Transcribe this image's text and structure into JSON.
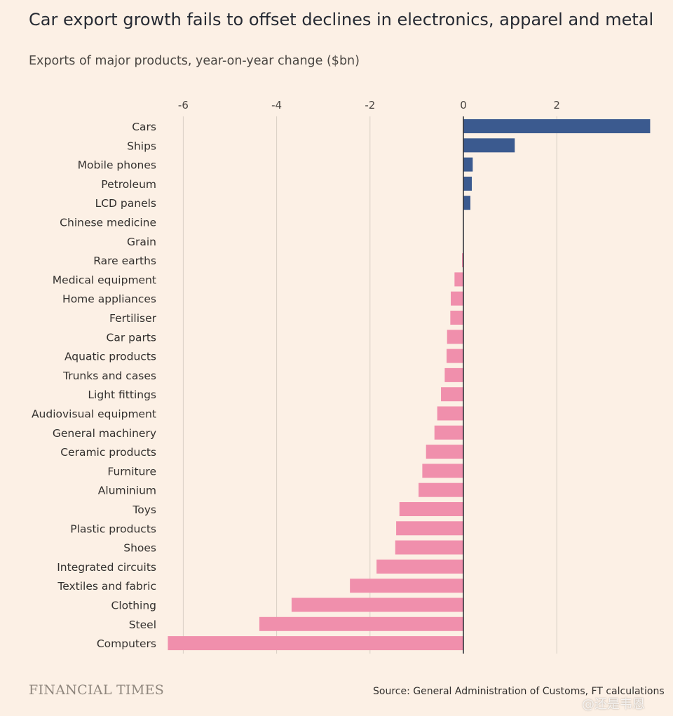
{
  "header": {
    "title": "Car export growth fails to offset declines in electronics, apparel and metal",
    "subtitle": "Exports of major products, year-on-year change ($bn)"
  },
  "footer": {
    "brand": "FINANCIAL TIMES",
    "source": "Source: General Administration of Customs, FT calculations",
    "watermark": "@还是韦恩"
  },
  "colors": {
    "background": "#fcf0e5",
    "positive": "#3b5a8f",
    "negative": "#f08fac",
    "gridline": "#d8cfc4",
    "zero_line": "#262a33"
  },
  "chart_data": {
    "type": "bar",
    "orientation": "horizontal",
    "title": "Car export growth fails to offset declines in electronics, apparel and metal",
    "subtitle": "Exports of major products, year-on-year change ($bn)",
    "xlabel": "",
    "ylabel": "",
    "xlim": [
      -6.3,
      4.0
    ],
    "xticks": [
      -6,
      -4,
      -2,
      0,
      2
    ],
    "grid": true,
    "categories": [
      "Cars",
      "Ships",
      "Mobile phones",
      "Petroleum",
      "LCD panels",
      "Chinese medicine",
      "Grain",
      "Rare earths",
      "Medical equipment",
      "Home appliances",
      "Fertiliser",
      "Car parts",
      "Aquatic products",
      "Trunks and cases",
      "Light fittings",
      "Audiovisual equipment",
      "General machinery",
      "Ceramic products",
      "Furniture",
      "Aluminium",
      "Toys",
      "Plastic products",
      "Shoes",
      "Integrated circuits",
      "Textiles and fabric",
      "Clothing",
      "Steel",
      "Computers"
    ],
    "values": [
      4.0,
      1.1,
      0.2,
      0.18,
      0.15,
      0.0,
      0.0,
      -0.03,
      -0.19,
      -0.27,
      -0.28,
      -0.35,
      -0.36,
      -0.4,
      -0.48,
      -0.56,
      -0.62,
      -0.8,
      -0.88,
      -0.96,
      -1.37,
      -1.44,
      -1.46,
      -1.86,
      -2.43,
      -3.68,
      -4.37,
      -6.33
    ]
  }
}
